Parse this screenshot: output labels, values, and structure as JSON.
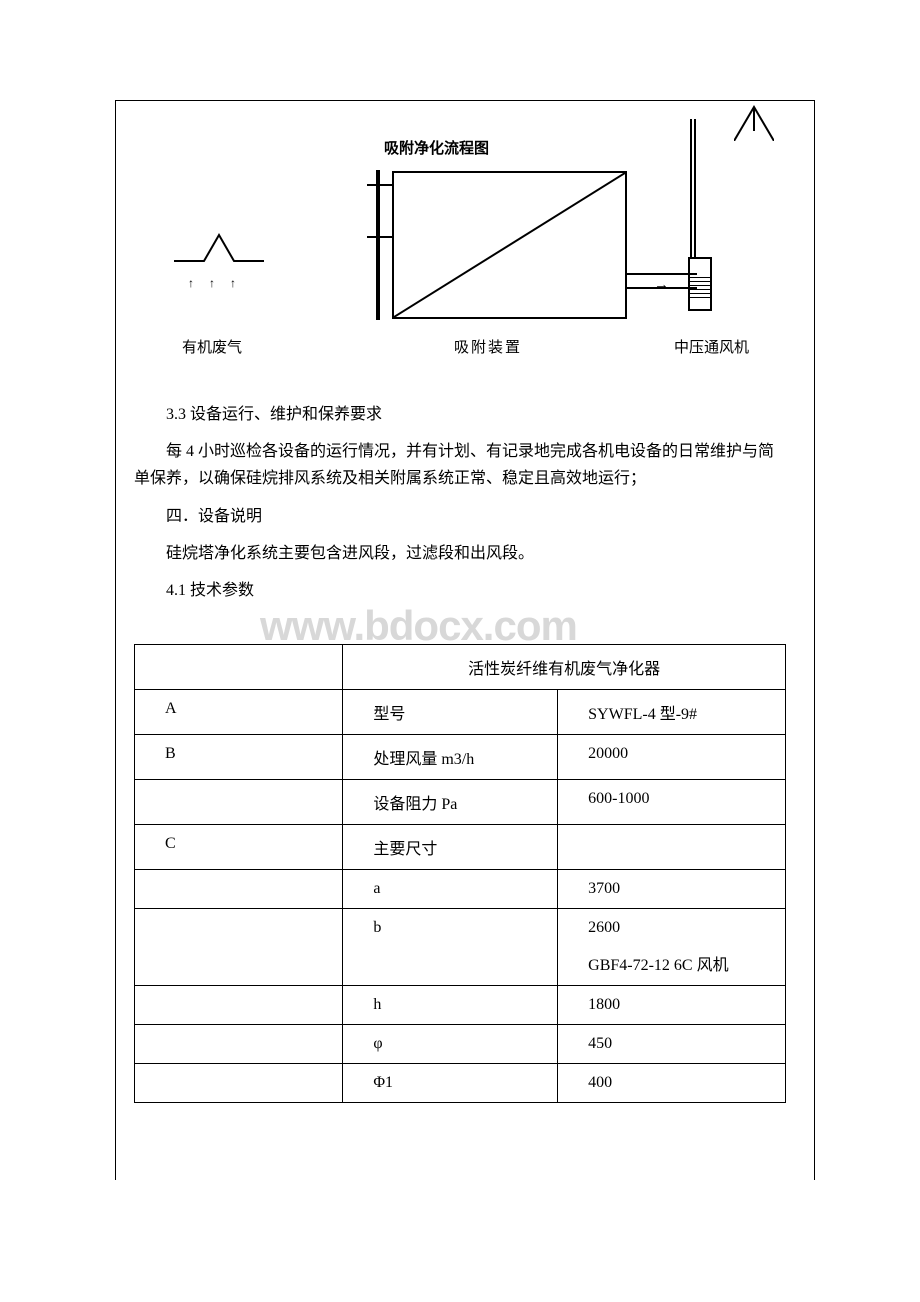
{
  "diagram": {
    "title": "吸附净化流程图",
    "hood_label": "有机废气",
    "adsorb_label": "吸附装置",
    "fan_label": "中压通风机",
    "arrows": "↑ ↑ ↑",
    "arrow_right": "→"
  },
  "section_3_3": {
    "heading": "3.3 设备运行、维护和保养要求",
    "body": "每 4 小时巡检各设备的运行情况，并有计划、有记录地完成各机电设备的日常维护与简单保养，以确保硅烷排风系统及相关附属系统正常、稳定且高效地运行；"
  },
  "section_4": {
    "heading": "四．设备说明",
    "body": "硅烷塔净化系统主要包含进风段，过滤段和出风段。",
    "sub": "4.1 技术参数"
  },
  "watermark": "www.bdocx.com",
  "table": {
    "header_span": "活性炭纤维有机废气净化器",
    "rows": [
      {
        "c1": "A",
        "c2": "型号",
        "c3": "SYWFL-4 型-9#"
      },
      {
        "c1": "B",
        "c2": "处理风量 m3/h",
        "c3": "20000"
      },
      {
        "c1": "",
        "c2": "设备阻力 Pa",
        "c3": "600-1000"
      },
      {
        "c1": "C",
        "c2": "主要尺寸",
        "c3": ""
      },
      {
        "c1": "",
        "c2": "a",
        "c3": "3700"
      },
      {
        "c1": "",
        "c2": "b",
        "c3": "2600\nGBF4-72-12 6C 风机"
      },
      {
        "c1": "",
        "c2": "h",
        "c3": "1800"
      },
      {
        "c1": "",
        "c2": "φ",
        "c3": "450"
      },
      {
        "c1": "",
        "c2": "Φ1",
        "c3": "400"
      }
    ]
  },
  "colors": {
    "border": "#000000",
    "bg": "#ffffff",
    "text": "#000000",
    "watermark": "#d8d8d8"
  }
}
